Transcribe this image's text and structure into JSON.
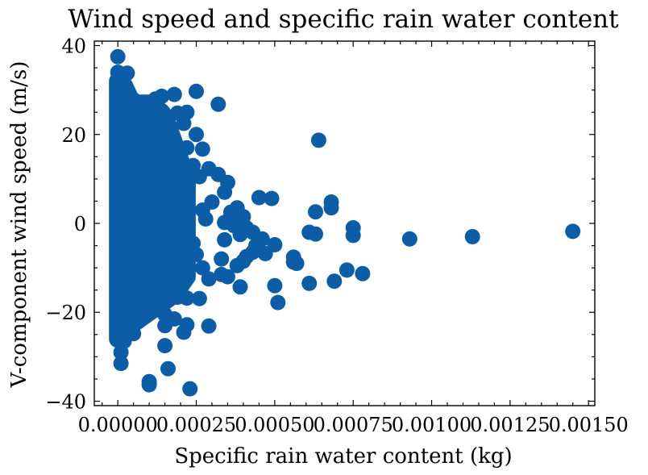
{
  "chart_data": {
    "type": "scatter",
    "title": "Wind speed and specific rain water content",
    "xlabel": "Specific rain water content (kg)",
    "ylabel": "V-component wind speed (m/s)",
    "xlim": [
      -7.5e-05,
      0.00152
    ],
    "ylim": [
      -41,
      41
    ],
    "x_ticks": [
      0,
      0.00025,
      0.0005,
      0.00075,
      0.001,
      0.00125,
      0.0015
    ],
    "x_tick_labels": [
      "0.00000",
      "0.00025",
      "0.00050",
      "0.00075",
      "0.00100",
      "0.00125",
      "0.00150"
    ],
    "y_ticks": [
      -40,
      -20,
      0,
      20,
      40
    ],
    "y_tick_labels": [
      "−40",
      "−20",
      "0",
      "20",
      "40"
    ],
    "grid": false,
    "marker_color": "#0C5DA5",
    "series": [
      {
        "points": [
          [
            0,
            37.5
          ],
          [
            0,
            34
          ],
          [
            3e-05,
            33.8
          ],
          [
            2e-05,
            31
          ],
          [
            1e-05,
            -31.5
          ],
          [
            1e-05,
            -29
          ],
          [
            2e-05,
            -26.5
          ],
          [
            5e-05,
            -24.8
          ],
          [
            1e-05,
            -22
          ],
          [
            0.0001,
            -36.3
          ],
          [
            0.0001,
            -35.6
          ],
          [
            0.00016,
            -32.7
          ],
          [
            0.00015,
            -27.5
          ],
          [
            0.00023,
            -37.2
          ],
          [
            0.00015,
            -23
          ],
          [
            0.00021,
            -24.5
          ],
          [
            0.00022,
            -22.8
          ],
          [
            0.00018,
            -21.5
          ],
          [
            0.00015,
            -20.5
          ],
          [
            0.00019,
            -16.6
          ],
          [
            0.00022,
            -16.8
          ],
          [
            0.00026,
            -16.9
          ],
          [
            0.00029,
            -23.1
          ],
          [
            0.00018,
            29
          ],
          [
            0.00014,
            28.6
          ],
          [
            0.00012,
            28
          ],
          [
            0.00025,
            29.7
          ],
          [
            0.00032,
            26.8
          ],
          [
            0.00022,
            25
          ],
          [
            0.00019,
            24.8
          ],
          [
            0.00017,
            19
          ],
          [
            0.00021,
            22.5
          ],
          [
            0.00025,
            20
          ],
          [
            0.00027,
            16.7
          ],
          [
            0.00022,
            17
          ],
          [
            0.00024,
            13
          ],
          [
            0.00029,
            12.3
          ],
          [
            0.00032,
            11
          ],
          [
            0.00035,
            9.2
          ],
          [
            0.00034,
            7
          ],
          [
            0.00026,
            10.5
          ],
          [
            0.0003,
            4.8
          ],
          [
            0.00027,
            3
          ],
          [
            0.00028,
            1
          ],
          [
            0.00024,
            -4.5
          ],
          [
            0.00025,
            -7
          ],
          [
            0.00027,
            -10
          ],
          [
            0.00029,
            -12.5
          ],
          [
            0.00033,
            -11.5
          ],
          [
            0.00035,
            -12
          ],
          [
            0.00033,
            -8
          ],
          [
            0.00036,
            2.5
          ],
          [
            0.00037,
            -0.5
          ],
          [
            0.00038,
            3.5
          ],
          [
            0.0004,
            1.5
          ],
          [
            0.00034,
            0.2
          ],
          [
            0.00034,
            -3.7
          ],
          [
            0.00039,
            -2.5
          ],
          [
            0.00041,
            -1
          ],
          [
            0.00038,
            -9.5
          ],
          [
            0.0004,
            -8.5
          ],
          [
            0.00041,
            -7.5
          ],
          [
            0.00039,
            -14.3
          ],
          [
            0.00043,
            -6.5
          ],
          [
            0.00044,
            -5
          ],
          [
            0.00043,
            -2
          ],
          [
            0.00046,
            -3.5
          ],
          [
            0.00047,
            -6.8
          ],
          [
            0.00045,
            5.8
          ],
          [
            0.00049,
            5.6
          ],
          [
            0.0005,
            -4.8
          ],
          [
            0.0005,
            -14
          ],
          [
            0.00051,
            -17.8
          ],
          [
            0.00056,
            -8.7
          ],
          [
            0.00057,
            -9
          ],
          [
            0.00056,
            -7.6
          ],
          [
            0.00061,
            -2
          ],
          [
            0.00061,
            -13.5
          ],
          [
            0.00063,
            -2.4
          ],
          [
            0.00063,
            2.6
          ],
          [
            0.00064,
            18.7
          ],
          [
            0.00068,
            4.8
          ],
          [
            0.00068,
            3.5
          ],
          [
            0.00069,
            -13
          ],
          [
            0.00073,
            -10.5
          ],
          [
            0.00075,
            -1
          ],
          [
            0.00075,
            -2.7
          ],
          [
            0.00078,
            -11.3
          ],
          [
            0.00093,
            -3.5
          ],
          [
            0.00113,
            -3
          ],
          [
            0.00145,
            -1.8
          ]
        ]
      }
    ],
    "dense_band": {
      "columns": [
        {
          "x": 0.0,
          "y_min": -26,
          "y_max": 32
        },
        {
          "x": 2e-05,
          "y_min": -25,
          "y_max": 31
        },
        {
          "x": 4e-05,
          "y_min": -23,
          "y_max": 28
        },
        {
          "x": 6e-05,
          "y_min": -22,
          "y_max": 27
        },
        {
          "x": 8e-05,
          "y_min": -21,
          "y_max": 27
        },
        {
          "x": 0.0001,
          "y_min": -20,
          "y_max": 27
        },
        {
          "x": 0.00012,
          "y_min": -19,
          "y_max": 26
        },
        {
          "x": 0.00014,
          "y_min": -18,
          "y_max": 25
        },
        {
          "x": 0.00016,
          "y_min": -17,
          "y_max": 22
        },
        {
          "x": 0.00018,
          "y_min": -16,
          "y_max": 18
        },
        {
          "x": 0.0002,
          "y_min": -14,
          "y_max": 14
        },
        {
          "x": 0.00022,
          "y_min": -12,
          "y_max": 10
        }
      ]
    }
  }
}
